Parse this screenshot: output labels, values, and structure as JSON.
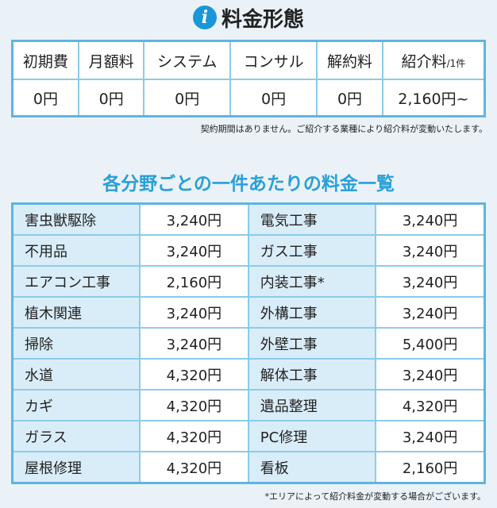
{
  "title": "料金形態",
  "icon": "info-icon",
  "accent_color": "#2a9fd8",
  "fee_table": {
    "headers": [
      "初期費",
      "月額料",
      "システム",
      "コンサル",
      "解約料",
      "紹介料"
    ],
    "referral_unit": "/1件",
    "values": [
      "0円",
      "0円",
      "0円",
      "0円",
      "0円",
      "2,160円~"
    ]
  },
  "note1": "契約期間はありません。ご紹介する業種により紹介料が変動いたします。",
  "subtitle": "各分野ごとの一件あたりの料金一覧",
  "price_rows": [
    {
      "left_name": "害虫獣駆除",
      "left_price": "3,240円",
      "right_name": "電気工事",
      "right_price": "3,240円"
    },
    {
      "left_name": "不用品",
      "left_price": "3,240円",
      "right_name": "ガス工事",
      "right_price": "3,240円"
    },
    {
      "left_name": "エアコン工事",
      "left_price": "2,160円",
      "right_name": "内装工事*",
      "right_price": "3,240円"
    },
    {
      "left_name": "植木関連",
      "left_price": "3,240円",
      "right_name": "外構工事",
      "right_price": "3,240円"
    },
    {
      "left_name": "掃除",
      "left_price": "3,240円",
      "right_name": "外壁工事",
      "right_price": "5,400円"
    },
    {
      "left_name": "水道",
      "left_price": "4,320円",
      "right_name": "解体工事",
      "right_price": "3,240円"
    },
    {
      "left_name": "カギ",
      "left_price": "4,320円",
      "right_name": "遺品整理",
      "right_price": "4,320円"
    },
    {
      "left_name": "ガラス",
      "left_price": "4,320円",
      "right_name": "PC修理",
      "right_price": "3,240円"
    },
    {
      "left_name": "屋根修理",
      "left_price": "4,320円",
      "right_name": "看板",
      "right_price": "2,160円"
    }
  ],
  "note2": "*エリアによって紹介料金が変動する場合がございます。"
}
